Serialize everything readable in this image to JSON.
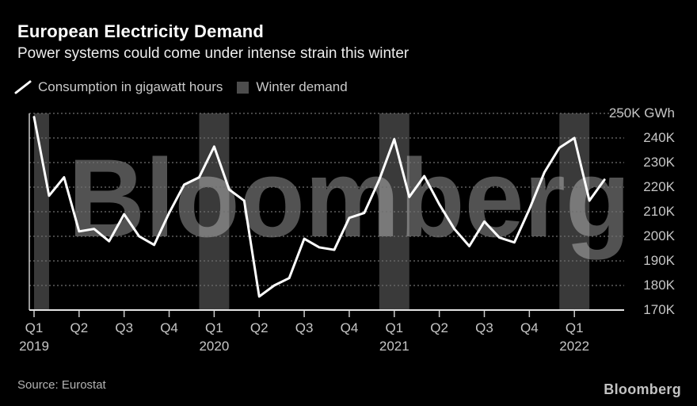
{
  "header": {
    "title": "European Electricity Demand",
    "subtitle": "Power systems could come under intense strain this winter"
  },
  "legend": {
    "line_series_label": "Consumption in gigawatt hours",
    "line_color": "#ffffff",
    "band_series_label": "Winter demand",
    "swatch_color": "#4d4d4d"
  },
  "watermark": "Bloomberg",
  "footer": {
    "source": "Source: Eurostat",
    "logo": "Bloomberg"
  },
  "chart_data": {
    "type": "line",
    "title": "European Electricity Demand",
    "unit": "GWh",
    "grid": "dotted horizontal, labels right",
    "frequency": "monthly",
    "x_start_month": "2019-01",
    "x_end_month": "2022-03",
    "y_axis": {
      "side": "right",
      "range": [
        170,
        250
      ],
      "ticks": [
        {
          "value": 250,
          "label": "250K GWh"
        },
        {
          "value": 240,
          "label": "240K"
        },
        {
          "value": 230,
          "label": "230K"
        },
        {
          "value": 220,
          "label": "220K"
        },
        {
          "value": 210,
          "label": "210K"
        },
        {
          "value": 200,
          "label": "200K"
        },
        {
          "value": 190,
          "label": "190K"
        },
        {
          "value": 180,
          "label": "180K"
        },
        {
          "value": 170,
          "label": "170K"
        }
      ]
    },
    "x_axis": {
      "tick_every_months": 3,
      "ticks": [
        {
          "label": "Q1",
          "year": "2019"
        },
        {
          "label": "Q2"
        },
        {
          "label": "Q3"
        },
        {
          "label": "Q4"
        },
        {
          "label": "Q1",
          "year": "2020"
        },
        {
          "label": "Q2"
        },
        {
          "label": "Q3"
        },
        {
          "label": "Q4"
        },
        {
          "label": "Q1",
          "year": "2021"
        },
        {
          "label": "Q2"
        },
        {
          "label": "Q3"
        },
        {
          "label": "Q4"
        },
        {
          "label": "Q1",
          "year": "2022"
        }
      ]
    },
    "series": [
      {
        "name": "Consumption in gigawatt hours",
        "color": "#ffffff",
        "values_k_gwh": [
          248.5,
          216.5,
          224,
          202,
          203,
          198,
          209,
          200,
          196.5,
          209.5,
          221,
          224,
          236.5,
          219,
          214.5,
          175.5,
          180,
          183,
          199,
          195.5,
          194.5,
          207.5,
          209.5,
          223,
          239.5,
          216,
          224.5,
          213,
          203,
          196,
          206,
          199.5,
          197.5,
          211,
          226,
          236,
          240,
          214.5,
          223
        ]
      }
    ],
    "bands": {
      "name": "Winter demand",
      "color": "#3a3a3a",
      "month_index_ranges": [
        [
          0,
          1
        ],
        [
          11,
          13
        ],
        [
          23,
          25
        ],
        [
          35,
          37
        ]
      ]
    }
  }
}
